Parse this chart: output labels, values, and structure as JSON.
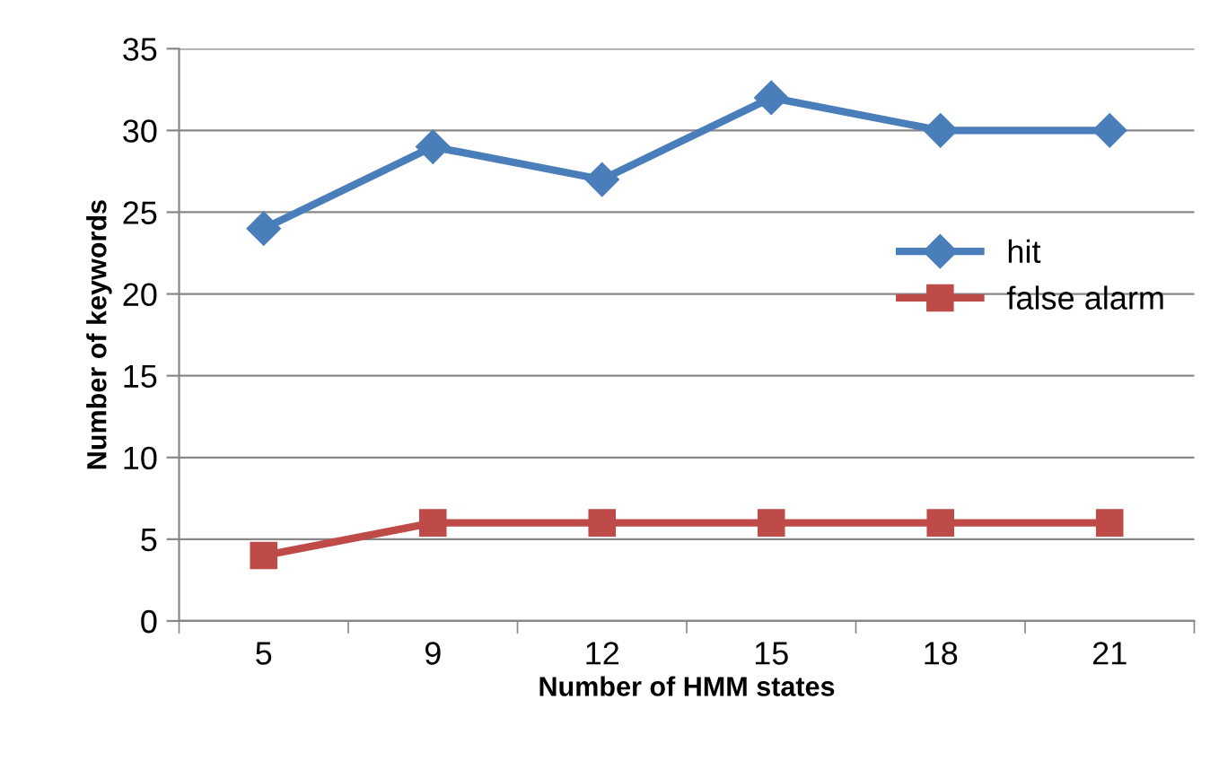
{
  "chart_data": {
    "type": "line",
    "xlabel": "Number of HMM states",
    "ylabel": "Number of keywords",
    "categories": [
      "5",
      "9",
      "12",
      "15",
      "18",
      "21"
    ],
    "series": [
      {
        "name": "hit",
        "color": "#4a7ebb",
        "marker": "diamond",
        "values": [
          24,
          29,
          27,
          32,
          30,
          30
        ]
      },
      {
        "name": "false alarm",
        "color": "#be4b48",
        "marker": "square",
        "values": [
          4,
          6,
          6,
          6,
          6,
          6
        ]
      }
    ],
    "ylim": [
      0,
      35
    ],
    "yticks": [
      0,
      5,
      10,
      15,
      20,
      25,
      30,
      35
    ],
    "grid": "y",
    "legend": "right",
    "line_style": "solid"
  }
}
